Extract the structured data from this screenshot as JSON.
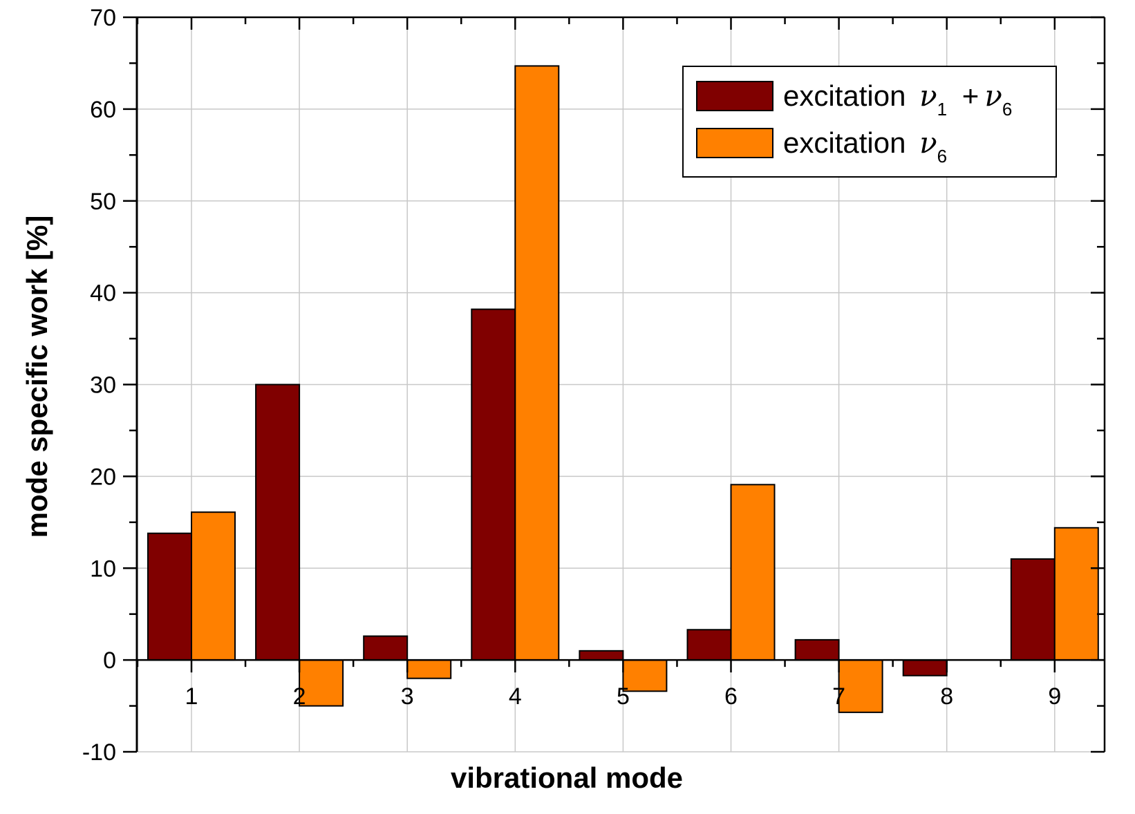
{
  "chart_data": {
    "type": "bar",
    "xlabel": "vibrational mode",
    "ylabel": "mode specific work [%]",
    "categories": [
      "1",
      "2",
      "3",
      "4",
      "5",
      "6",
      "7",
      "8",
      "9"
    ],
    "ylim": [
      -10,
      70
    ],
    "yticks": [
      -10,
      0,
      10,
      20,
      30,
      40,
      50,
      60,
      70
    ],
    "yticklabels": [
      "-10",
      "0",
      "10",
      "20",
      "30",
      "40",
      "50",
      "60",
      "70"
    ],
    "grid": true,
    "legend_position": "top-right",
    "series": [
      {
        "name": "excitation ν1 + ν6",
        "label_text": "excitation",
        "label_parts": [
          {
            "symbol": "ν",
            "sub": "1"
          },
          {
            "op": "+"
          },
          {
            "symbol": "ν",
            "sub": "6"
          }
        ],
        "color": "#800000",
        "values": [
          13.8,
          30.0,
          2.6,
          38.2,
          1.0,
          3.3,
          2.2,
          -1.7,
          11.0
        ]
      },
      {
        "name": "excitation ν6",
        "label_text": "excitation",
        "label_parts": [
          {
            "symbol": "ν",
            "sub": "6"
          }
        ],
        "color": "#ff8000",
        "values": [
          16.1,
          -5.0,
          -2.0,
          64.7,
          -3.4,
          19.1,
          -5.7,
          0.0,
          14.4
        ]
      }
    ]
  }
}
